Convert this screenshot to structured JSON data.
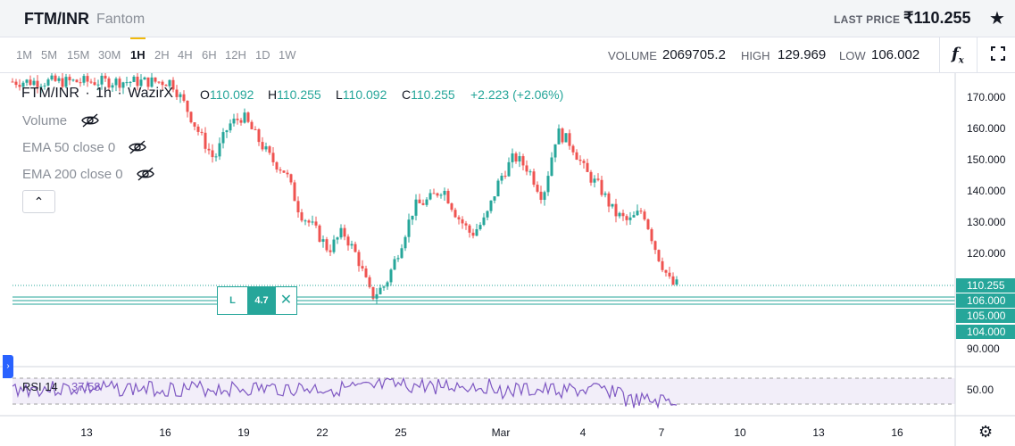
{
  "header": {
    "pair": "FTM/INR",
    "pair_name": "Fantom",
    "last_price_label": "LAST PRICE",
    "last_price": "₹110.255"
  },
  "toolbar": {
    "timeframes": [
      "1M",
      "5M",
      "15M",
      "30M",
      "1H",
      "2H",
      "4H",
      "6H",
      "12H",
      "1D",
      "1W"
    ],
    "active_timeframe": "1H",
    "volume_label": "VOLUME",
    "volume": "2069705.2",
    "high_label": "HIGH",
    "high": "129.969",
    "low_label": "LOW",
    "low": "106.002"
  },
  "legend": {
    "symbol": "FTM/INR",
    "interval": "1h",
    "exchange": "WazirX",
    "o_label": "O",
    "o": "110.092",
    "h_label": "H",
    "h": "110.255",
    "l_label": "L",
    "l": "110.092",
    "c_label": "C",
    "c": "110.255",
    "change": "+2.223 (+2.06%)",
    "indicators": [
      "Volume",
      "EMA 50 close 0",
      "EMA 200 close 0"
    ]
  },
  "position": {
    "side": "L",
    "qty": "4.7"
  },
  "rsi": {
    "label": "RSI 14",
    "value": "37.58"
  },
  "colors": {
    "up": "#26a69a",
    "down": "#ef5350",
    "rsi": "#7e57c2",
    "position_line": "#26a69a"
  },
  "chart_data": {
    "type": "candlestick",
    "y_ticks": [
      "170.000",
      "160.000",
      "150.000",
      "140.000",
      "130.000",
      "120.000",
      "90.000"
    ],
    "price_labels": [
      "110.255",
      "106.000",
      "105.000",
      "104.000"
    ],
    "x_ticks": [
      "13",
      "16",
      "19",
      "22",
      "25",
      "Mar",
      "4",
      "7",
      "10",
      "13",
      "16"
    ],
    "rsi_ticks": [
      "50.00"
    ],
    "close_path": [
      [
        12,
        175
      ],
      [
        13,
        167
      ],
      [
        14,
        158
      ],
      [
        15,
        150
      ],
      [
        16,
        161
      ],
      [
        17,
        164
      ],
      [
        18,
        157
      ],
      [
        19,
        150
      ],
      [
        20,
        146
      ],
      [
        21,
        133
      ],
      [
        22,
        128
      ],
      [
        23,
        121
      ],
      [
        24,
        127
      ],
      [
        25,
        119
      ],
      [
        26,
        106
      ],
      [
        27,
        110
      ],
      [
        28,
        122
      ],
      [
        29,
        135
      ],
      [
        30,
        137
      ],
      [
        31,
        141
      ],
      [
        32,
        132
      ],
      [
        33,
        126
      ],
      [
        34,
        131
      ],
      [
        35,
        144
      ],
      [
        36,
        151
      ],
      [
        37,
        147
      ],
      [
        38,
        138
      ],
      [
        39,
        159
      ],
      [
        40,
        155
      ],
      [
        41,
        146
      ],
      [
        42,
        141
      ],
      [
        43,
        133
      ],
      [
        44,
        130
      ],
      [
        45,
        134
      ],
      [
        46,
        120
      ],
      [
        47,
        110
      ]
    ]
  }
}
